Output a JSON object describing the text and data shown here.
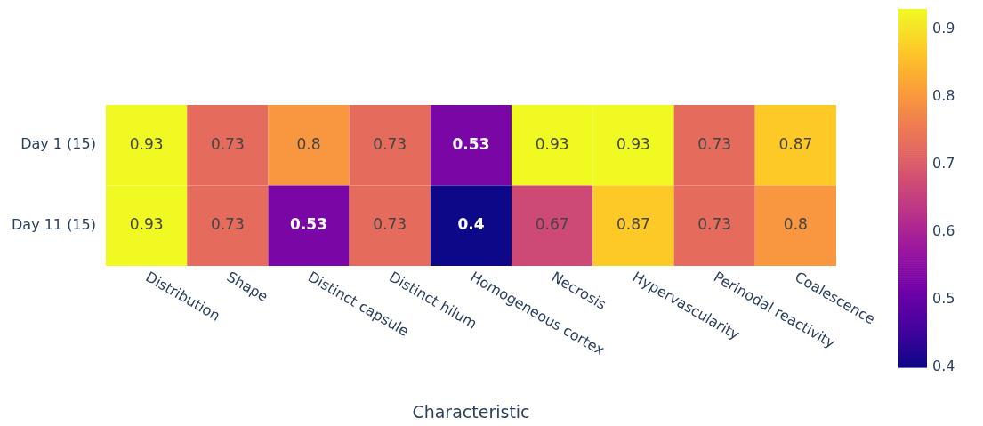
{
  "chart_data": {
    "type": "heatmap",
    "xlabel": "Characteristic",
    "categories": [
      "Distribution",
      "Shape",
      "Distinct capsule",
      "Distinct hilum",
      "Homogeneous cortex",
      "Necrosis",
      "Hypervascularity",
      "Perinodal reactivity",
      "Coalescence"
    ],
    "y_categories": [
      "Day 1 (15)",
      "Day 11 (15)"
    ],
    "cells": [
      [
        0.93,
        0.73,
        0.8,
        0.73,
        0.53,
        0.93,
        0.93,
        0.73,
        0.87
      ],
      [
        0.93,
        0.73,
        0.53,
        0.73,
        0.4,
        0.67,
        0.87,
        0.73,
        0.8
      ]
    ],
    "data_labels": true,
    "clim": [
      0.4,
      0.93
    ],
    "cticks": [
      0.4,
      0.5,
      0.6,
      0.7,
      0.8,
      0.9
    ]
  }
}
